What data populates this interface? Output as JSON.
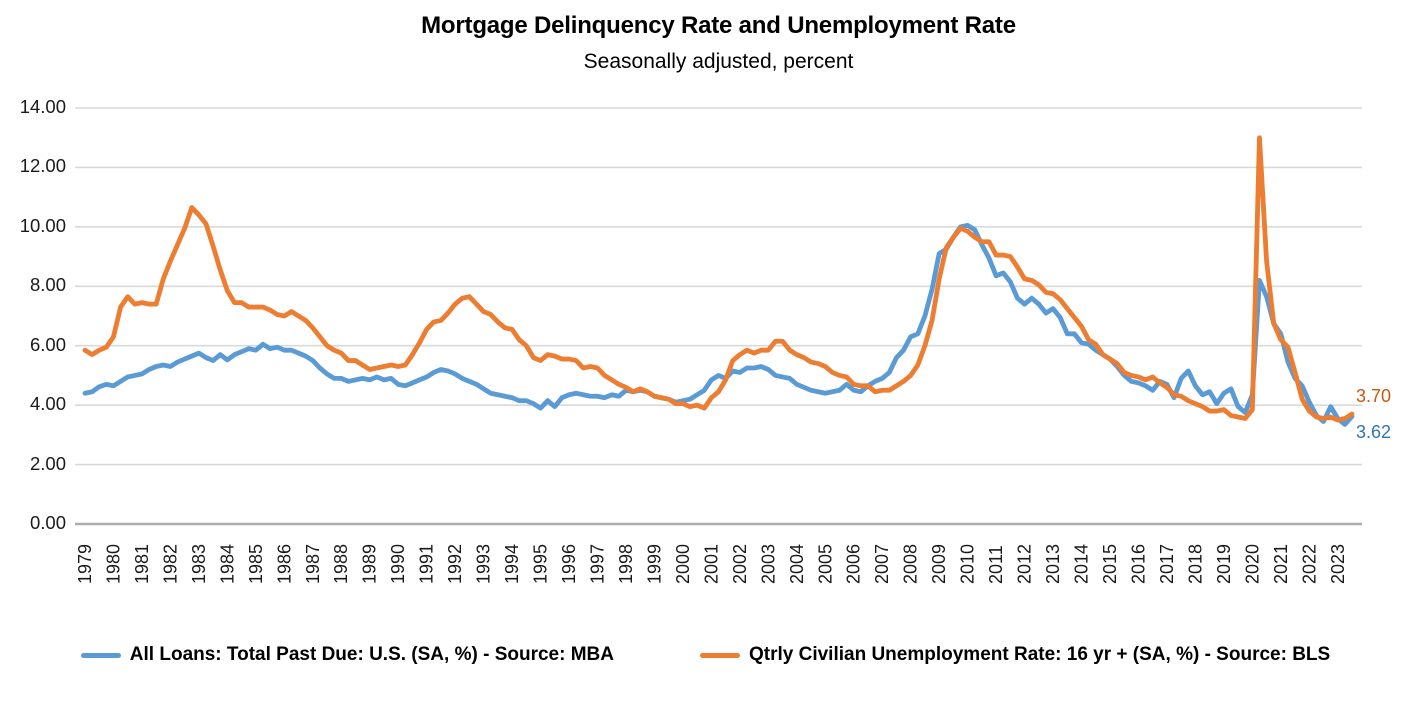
{
  "title": "Mortgage Delinquency Rate and Unemployment Rate",
  "subtitle": "Seasonally adjusted, percent",
  "colors": {
    "gridline": "#D9D9D9",
    "axis_line": "#ADADAD",
    "tick_text": "#1a1a1a",
    "delinquency_blue": "#5B9BD5",
    "unemployment_orange": "#ED7D31",
    "delinquency_label_blue": "#2E75B6",
    "unemployment_label_orange": "#C55A11"
  },
  "chart_data": {
    "type": "line",
    "title": "Mortgage Delinquency Rate and Unemployment Rate",
    "subtitle": "Seasonally adjusted, percent",
    "grid": "horizontal",
    "legend_position": "bottom",
    "ylim": [
      0,
      14
    ],
    "y_ticks": [
      "0.00",
      "2.00",
      "4.00",
      "6.00",
      "8.00",
      "10.00",
      "12.00",
      "14.00"
    ],
    "x_frequency": "quarterly",
    "x_start": "1979 Q1",
    "x_end": "2023 Q3",
    "x_year_labels": [
      "1979",
      "1980",
      "1981",
      "1982",
      "1983",
      "1984",
      "1985",
      "1986",
      "1987",
      "1988",
      "1989",
      "1990",
      "1991",
      "1992",
      "1993",
      "1994",
      "1995",
      "1996",
      "1997",
      "1998",
      "1999",
      "2000",
      "2001",
      "2002",
      "2003",
      "2004",
      "2005",
      "2006",
      "2007",
      "2008",
      "2009",
      "2010",
      "2011",
      "2012",
      "2013",
      "2014",
      "2015",
      "2016",
      "2017",
      "2018",
      "2019",
      "2020",
      "2021",
      "2022",
      "2023"
    ],
    "series": [
      {
        "name": "All Loans: Total Past Due: U.S. (SA, %) - Source: MBA",
        "color": "#5B9BD5",
        "end_label": "3.62",
        "end_label_color": "#2E75B6",
        "values": [
          4.4,
          4.45,
          4.62,
          4.7,
          4.65,
          4.8,
          4.95,
          5.0,
          5.05,
          5.2,
          5.3,
          5.35,
          5.3,
          5.45,
          5.55,
          5.65,
          5.75,
          5.6,
          5.5,
          5.7,
          5.52,
          5.7,
          5.8,
          5.9,
          5.85,
          6.05,
          5.9,
          5.95,
          5.85,
          5.85,
          5.75,
          5.65,
          5.5,
          5.25,
          5.05,
          4.9,
          4.9,
          4.8,
          4.85,
          4.9,
          4.85,
          4.95,
          4.85,
          4.9,
          4.7,
          4.65,
          4.75,
          4.85,
          4.95,
          5.1,
          5.2,
          5.15,
          5.05,
          4.9,
          4.8,
          4.7,
          4.55,
          4.4,
          4.35,
          4.3,
          4.25,
          4.15,
          4.15,
          4.05,
          3.9,
          4.15,
          3.95,
          4.25,
          4.35,
          4.4,
          4.35,
          4.3,
          4.3,
          4.25,
          4.35,
          4.3,
          4.5,
          4.45,
          4.5,
          4.45,
          4.3,
          4.25,
          4.2,
          4.1,
          4.15,
          4.2,
          4.35,
          4.5,
          4.85,
          5.0,
          4.9,
          5.15,
          5.1,
          5.25,
          5.25,
          5.3,
          5.2,
          5.0,
          4.95,
          4.9,
          4.7,
          4.6,
          4.5,
          4.45,
          4.4,
          4.45,
          4.5,
          4.7,
          4.5,
          4.45,
          4.65,
          4.8,
          4.9,
          5.1,
          5.6,
          5.85,
          6.3,
          6.4,
          7.0,
          7.9,
          9.1,
          9.25,
          9.65,
          10.0,
          10.05,
          9.9,
          9.4,
          8.95,
          8.35,
          8.45,
          8.15,
          7.6,
          7.4,
          7.6,
          7.4,
          7.1,
          7.25,
          6.95,
          6.4,
          6.4,
          6.1,
          6.05,
          5.85,
          5.7,
          5.55,
          5.3,
          5.0,
          4.8,
          4.75,
          4.65,
          4.5,
          4.8,
          4.7,
          4.25,
          4.9,
          5.15,
          4.65,
          4.35,
          4.45,
          4.05,
          4.4,
          4.55,
          3.95,
          3.75,
          4.35,
          8.2,
          7.65,
          6.75,
          6.4,
          5.45,
          4.9,
          4.65,
          4.1,
          3.65,
          3.45,
          3.95,
          3.55,
          3.35,
          3.62
        ]
      },
      {
        "name": "Qtrly Civilian Unemployment Rate: 16 yr + (SA, %) - Source: BLS",
        "color": "#ED7D31",
        "end_label": "3.70",
        "end_label_color": "#C55A11",
        "values": [
          5.85,
          5.7,
          5.85,
          5.95,
          6.3,
          7.3,
          7.65,
          7.4,
          7.45,
          7.4,
          7.4,
          8.25,
          8.85,
          9.4,
          9.95,
          10.65,
          10.4,
          10.1,
          9.35,
          8.55,
          7.85,
          7.45,
          7.45,
          7.3,
          7.3,
          7.3,
          7.2,
          7.05,
          7.0,
          7.15,
          7.0,
          6.85,
          6.6,
          6.3,
          6.0,
          5.85,
          5.75,
          5.5,
          5.5,
          5.35,
          5.2,
          5.25,
          5.3,
          5.35,
          5.3,
          5.35,
          5.7,
          6.1,
          6.55,
          6.8,
          6.85,
          7.1,
          7.4,
          7.6,
          7.65,
          7.4,
          7.15,
          7.05,
          6.8,
          6.6,
          6.55,
          6.2,
          6.0,
          5.6,
          5.5,
          5.7,
          5.65,
          5.55,
          5.55,
          5.5,
          5.25,
          5.3,
          5.25,
          5.0,
          4.85,
          4.7,
          4.6,
          4.45,
          4.55,
          4.45,
          4.3,
          4.25,
          4.2,
          4.05,
          4.05,
          3.95,
          4.0,
          3.9,
          4.25,
          4.45,
          4.85,
          5.5,
          5.7,
          5.85,
          5.75,
          5.85,
          5.85,
          6.15,
          6.15,
          5.85,
          5.7,
          5.6,
          5.45,
          5.4,
          5.3,
          5.1,
          5.0,
          4.95,
          4.7,
          4.65,
          4.65,
          4.45,
          4.5,
          4.5,
          4.65,
          4.8,
          5.0,
          5.35,
          6.0,
          6.85,
          8.25,
          9.3,
          9.65,
          9.95,
          9.85,
          9.65,
          9.5,
          9.5,
          9.05,
          9.05,
          9.0,
          8.65,
          8.25,
          8.2,
          8.05,
          7.8,
          7.75,
          7.55,
          7.25,
          6.95,
          6.65,
          6.2,
          6.05,
          5.7,
          5.55,
          5.4,
          5.1,
          5.0,
          4.95,
          4.85,
          4.95,
          4.75,
          4.6,
          4.35,
          4.3,
          4.15,
          4.05,
          3.95,
          3.8,
          3.8,
          3.85,
          3.65,
          3.6,
          3.55,
          3.85,
          13.0,
          8.85,
          6.75,
          6.2,
          5.95,
          5.1,
          4.2,
          3.8,
          3.6,
          3.55,
          3.6,
          3.5,
          3.55,
          3.7
        ]
      }
    ]
  }
}
